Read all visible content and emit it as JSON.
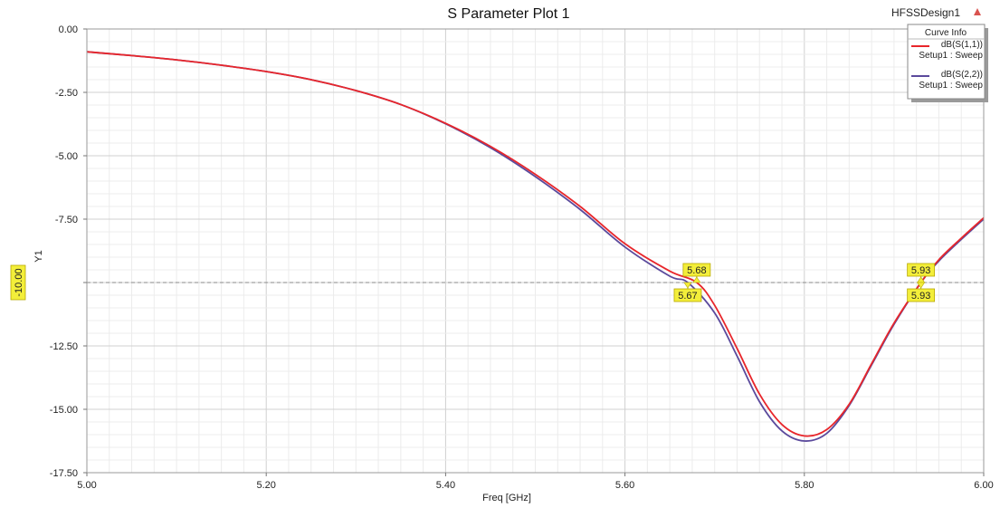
{
  "chart_data": {
    "type": "line",
    "title": "S Parameter Plot 1",
    "design_name": "HFSSDesign1",
    "xlabel": "Freq [GHz]",
    "ylabel": "Y1",
    "xlim": [
      5.0,
      6.0
    ],
    "ylim": [
      -17.5,
      0.0
    ],
    "x_ticks": [
      "5.00",
      "5.20",
      "5.40",
      "5.60",
      "5.80",
      "6.00"
    ],
    "y_ticks": [
      "0.00",
      "-2.50",
      "-5.00",
      "-7.50",
      "-10.00",
      "-12.50",
      "-15.00",
      "-17.50"
    ],
    "grid": true,
    "legend_position": "top-right",
    "legend_title": "Curve Info",
    "series": [
      {
        "name": "dB(S(1,1))",
        "subtitle": "Setup1 : Sweep",
        "color": "#e8262b",
        "x": [
          5.0,
          5.05,
          5.1,
          5.15,
          5.2,
          5.25,
          5.3,
          5.35,
          5.4,
          5.45,
          5.5,
          5.55,
          5.6,
          5.65,
          5.68,
          5.7,
          5.725,
          5.75,
          5.775,
          5.8,
          5.825,
          5.85,
          5.875,
          5.9,
          5.93,
          5.95,
          5.975,
          6.0
        ],
        "y": [
          -0.9,
          -1.05,
          -1.22,
          -1.43,
          -1.68,
          -2.0,
          -2.43,
          -2.98,
          -3.72,
          -4.63,
          -5.73,
          -7.0,
          -8.47,
          -9.55,
          -10.0,
          -10.9,
          -12.6,
          -14.4,
          -15.6,
          -16.05,
          -15.8,
          -14.8,
          -13.2,
          -11.6,
          -10.0,
          -9.1,
          -8.25,
          -7.45
        ]
      },
      {
        "name": "dB(S(2,2))",
        "subtitle": "Setup1 : Sweep",
        "color": "#5b4a9c",
        "x": [
          5.0,
          5.05,
          5.1,
          5.15,
          5.2,
          5.25,
          5.3,
          5.35,
          5.4,
          5.45,
          5.5,
          5.55,
          5.6,
          5.65,
          5.67,
          5.7,
          5.725,
          5.75,
          5.775,
          5.8,
          5.825,
          5.85,
          5.875,
          5.9,
          5.93,
          5.95,
          5.975,
          6.0
        ],
        "y": [
          -0.9,
          -1.05,
          -1.22,
          -1.43,
          -1.68,
          -2.0,
          -2.43,
          -2.98,
          -3.74,
          -4.68,
          -5.82,
          -7.12,
          -8.6,
          -9.75,
          -10.0,
          -11.2,
          -12.9,
          -14.7,
          -15.85,
          -16.25,
          -15.95,
          -14.85,
          -13.25,
          -11.65,
          -10.0,
          -9.15,
          -8.3,
          -7.5
        ]
      }
    ],
    "reference_line": {
      "y": -10.0,
      "label": "-10.00"
    },
    "markers": [
      {
        "label": "5.68",
        "x": 5.68,
        "y": -10.0,
        "position": "above"
      },
      {
        "label": "5.67",
        "x": 5.67,
        "y": -10.0,
        "position": "below"
      },
      {
        "label": "5.93",
        "x": 5.93,
        "y": -10.0,
        "position": "above"
      },
      {
        "label": "5.93",
        "x": 5.93,
        "y": -10.0,
        "position": "below"
      }
    ]
  }
}
